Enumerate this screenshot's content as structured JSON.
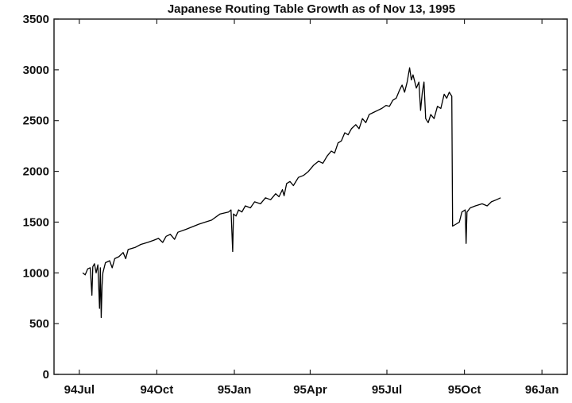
{
  "chart_data": {
    "type": "line",
    "title": "Japanese Routing Table Growth as of Nov 13, 1995",
    "xlabel": "",
    "ylabel": "",
    "ylim": [
      0,
      3500
    ],
    "yticks": [
      0,
      500,
      1000,
      1500,
      2000,
      2500,
      3000,
      3500
    ],
    "xlim": [
      "1994-06-01",
      "1996-01-31"
    ],
    "xticks": [
      {
        "date": "1994-07-01",
        "label": "94Jul"
      },
      {
        "date": "1994-10-01",
        "label": "94Oct"
      },
      {
        "date": "1995-01-01",
        "label": "95Jan"
      },
      {
        "date": "1995-04-01",
        "label": "95Apr"
      },
      {
        "date": "1995-07-01",
        "label": "95Jul"
      },
      {
        "date": "1995-10-01",
        "label": "95Oct"
      },
      {
        "date": "1996-01-01",
        "label": "96Jan"
      }
    ],
    "grid": false,
    "series": [
      {
        "color": "#000000",
        "points": [
          [
            "1994-07-05",
            1000
          ],
          [
            "1994-07-08",
            980
          ],
          [
            "1994-07-11",
            1040
          ],
          [
            "1994-07-14",
            1050
          ],
          [
            "1994-07-16",
            780
          ],
          [
            "1994-07-17",
            1060
          ],
          [
            "1994-07-19",
            1090
          ],
          [
            "1994-07-21",
            1000
          ],
          [
            "1994-07-23",
            1080
          ],
          [
            "1994-07-25",
            650
          ],
          [
            "1994-07-26",
            1050
          ],
          [
            "1994-07-27",
            560
          ],
          [
            "1994-07-28",
            880
          ],
          [
            "1994-07-29",
            1000
          ],
          [
            "1994-08-01",
            1100
          ],
          [
            "1994-08-06",
            1120
          ],
          [
            "1994-08-09",
            1050
          ],
          [
            "1994-08-12",
            1140
          ],
          [
            "1994-08-17",
            1160
          ],
          [
            "1994-08-22",
            1200
          ],
          [
            "1994-08-25",
            1140
          ],
          [
            "1994-08-28",
            1230
          ],
          [
            "1994-09-05",
            1250
          ],
          [
            "1994-09-12",
            1280
          ],
          [
            "1994-09-20",
            1300
          ],
          [
            "1994-09-27",
            1320
          ],
          [
            "1994-10-03",
            1340
          ],
          [
            "1994-10-08",
            1300
          ],
          [
            "1994-10-12",
            1360
          ],
          [
            "1994-10-17",
            1380
          ],
          [
            "1994-10-22",
            1330
          ],
          [
            "1994-10-26",
            1400
          ],
          [
            "1994-11-05",
            1430
          ],
          [
            "1994-11-20",
            1480
          ],
          [
            "1994-12-05",
            1520
          ],
          [
            "1994-12-15",
            1580
          ],
          [
            "1994-12-25",
            1600
          ],
          [
            "1994-12-28",
            1620
          ],
          [
            "1994-12-30",
            1210
          ],
          [
            "1994-12-31",
            1580
          ],
          [
            "1995-01-03",
            1560
          ],
          [
            "1995-01-06",
            1620
          ],
          [
            "1995-01-10",
            1600
          ],
          [
            "1995-01-14",
            1660
          ],
          [
            "1995-01-20",
            1640
          ],
          [
            "1995-01-25",
            1700
          ],
          [
            "1995-02-01",
            1680
          ],
          [
            "1995-02-07",
            1740
          ],
          [
            "1995-02-13",
            1720
          ],
          [
            "1995-02-19",
            1780
          ],
          [
            "1995-02-23",
            1750
          ],
          [
            "1995-02-27",
            1820
          ],
          [
            "1995-03-01",
            1760
          ],
          [
            "1995-03-04",
            1880
          ],
          [
            "1995-03-08",
            1900
          ],
          [
            "1995-03-12",
            1860
          ],
          [
            "1995-03-18",
            1940
          ],
          [
            "1995-03-24",
            1960
          ],
          [
            "1995-03-30",
            2000
          ],
          [
            "1995-04-05",
            2060
          ],
          [
            "1995-04-11",
            2100
          ],
          [
            "1995-04-16",
            2080
          ],
          [
            "1995-04-21",
            2150
          ],
          [
            "1995-04-26",
            2200
          ],
          [
            "1995-04-30",
            2180
          ],
          [
            "1995-05-04",
            2280
          ],
          [
            "1995-05-08",
            2300
          ],
          [
            "1995-05-12",
            2380
          ],
          [
            "1995-05-16",
            2360
          ],
          [
            "1995-05-20",
            2420
          ],
          [
            "1995-05-25",
            2460
          ],
          [
            "1995-05-29",
            2420
          ],
          [
            "1995-06-02",
            2520
          ],
          [
            "1995-06-06",
            2480
          ],
          [
            "1995-06-10",
            2560
          ],
          [
            "1995-06-15",
            2580
          ],
          [
            "1995-06-20",
            2600
          ],
          [
            "1995-06-25",
            2620
          ],
          [
            "1995-06-30",
            2650
          ],
          [
            "1995-07-04",
            2640
          ],
          [
            "1995-07-08",
            2700
          ],
          [
            "1995-07-12",
            2720
          ],
          [
            "1995-07-16",
            2800
          ],
          [
            "1995-07-19",
            2850
          ],
          [
            "1995-07-22",
            2780
          ],
          [
            "1995-07-25",
            2880
          ],
          [
            "1995-07-28",
            3020
          ],
          [
            "1995-07-30",
            2900
          ],
          [
            "1995-08-01",
            2950
          ],
          [
            "1995-08-05",
            2820
          ],
          [
            "1995-08-08",
            2880
          ],
          [
            "1995-08-10",
            2600
          ],
          [
            "1995-08-12",
            2780
          ],
          [
            "1995-08-14",
            2880
          ],
          [
            "1995-08-16",
            2520
          ],
          [
            "1995-08-19",
            2480
          ],
          [
            "1995-08-22",
            2560
          ],
          [
            "1995-08-26",
            2520
          ],
          [
            "1995-08-30",
            2640
          ],
          [
            "1995-09-03",
            2620
          ],
          [
            "1995-09-07",
            2760
          ],
          [
            "1995-09-10",
            2720
          ],
          [
            "1995-09-13",
            2780
          ],
          [
            "1995-09-16",
            2740
          ],
          [
            "1995-09-17",
            1460
          ],
          [
            "1995-09-21",
            1480
          ],
          [
            "1995-09-25",
            1500
          ],
          [
            "1995-09-28",
            1600
          ],
          [
            "1995-10-02",
            1620
          ],
          [
            "1995-10-03",
            1290
          ],
          [
            "1995-10-04",
            1600
          ],
          [
            "1995-10-08",
            1640
          ],
          [
            "1995-10-14",
            1660
          ],
          [
            "1995-10-22",
            1680
          ],
          [
            "1995-10-28",
            1660
          ],
          [
            "1995-11-02",
            1700
          ],
          [
            "1995-11-08",
            1720
          ],
          [
            "1995-11-13",
            1740
          ]
        ]
      }
    ]
  }
}
